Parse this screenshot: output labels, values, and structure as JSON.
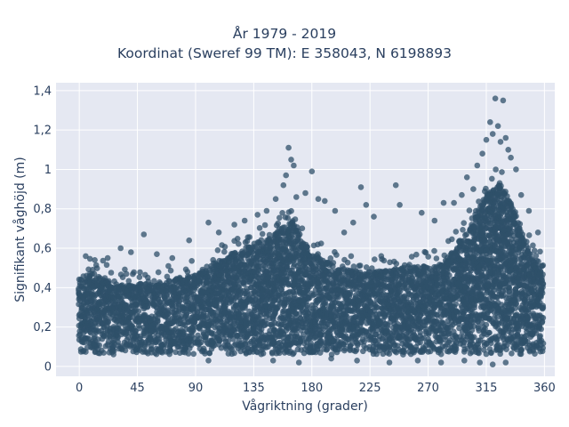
{
  "title": {
    "line1": "År 1979 - 2019",
    "line2": "Koordinat (Sweref 99 TM): E 358043, N 6198893"
  },
  "colors": {
    "plot_bg": "#e5e8f2",
    "grid": "#ffffff",
    "marker": "#2f5069"
  },
  "chart_data": {
    "type": "scatter",
    "xlabel": "Vågriktning (grader)",
    "ylabel": "Signifikant våghöjd (m)",
    "xlim": [
      -18,
      368
    ],
    "ylim": [
      -0.05,
      1.44
    ],
    "xticks": [
      0,
      45,
      90,
      135,
      180,
      225,
      270,
      315,
      360
    ],
    "xtick_labels": [
      "0",
      "45",
      "90",
      "135",
      "180",
      "225",
      "270",
      "315",
      "360"
    ],
    "yticks": [
      0,
      0.2,
      0.4,
      0.6,
      0.8,
      1,
      1.2,
      1.4
    ],
    "ytick_labels": [
      "0",
      "0,2",
      "0,4",
      "0,6",
      "0,8",
      "1",
      "1,2",
      "1,4"
    ],
    "grid": true,
    "legend": "none",
    "dense_envelope": [
      {
        "x": 0,
        "ymin": 0.07,
        "ymax": 0.45
      },
      {
        "x": 10,
        "ymin": 0.06,
        "ymax": 0.48
      },
      {
        "x": 30,
        "ymin": 0.06,
        "ymax": 0.42
      },
      {
        "x": 60,
        "ymin": 0.06,
        "ymax": 0.42
      },
      {
        "x": 90,
        "ymin": 0.06,
        "ymax": 0.47
      },
      {
        "x": 110,
        "ymin": 0.06,
        "ymax": 0.55
      },
      {
        "x": 135,
        "ymin": 0.06,
        "ymax": 0.62
      },
      {
        "x": 155,
        "ymin": 0.06,
        "ymax": 0.7
      },
      {
        "x": 165,
        "ymin": 0.06,
        "ymax": 0.74
      },
      {
        "x": 180,
        "ymin": 0.06,
        "ymax": 0.58
      },
      {
        "x": 200,
        "ymin": 0.06,
        "ymax": 0.5
      },
      {
        "x": 225,
        "ymin": 0.06,
        "ymax": 0.48
      },
      {
        "x": 250,
        "ymin": 0.06,
        "ymax": 0.5
      },
      {
        "x": 280,
        "ymin": 0.06,
        "ymax": 0.52
      },
      {
        "x": 300,
        "ymin": 0.06,
        "ymax": 0.68
      },
      {
        "x": 315,
        "ymin": 0.06,
        "ymax": 0.88
      },
      {
        "x": 325,
        "ymin": 0.06,
        "ymax": 0.95
      },
      {
        "x": 335,
        "ymin": 0.06,
        "ymax": 0.82
      },
      {
        "x": 345,
        "ymin": 0.06,
        "ymax": 0.62
      },
      {
        "x": 360,
        "ymin": 0.06,
        "ymax": 0.5
      }
    ],
    "outliers": [
      [
        5,
        0.56
      ],
      [
        12,
        0.54
      ],
      [
        22,
        0.55
      ],
      [
        32,
        0.6
      ],
      [
        40,
        0.58
      ],
      [
        50,
        0.67
      ],
      [
        60,
        0.57
      ],
      [
        72,
        0.55
      ],
      [
        85,
        0.64
      ],
      [
        100,
        0.73
      ],
      [
        108,
        0.68
      ],
      [
        120,
        0.72
      ],
      [
        128,
        0.74
      ],
      [
        138,
        0.77
      ],
      [
        145,
        0.79
      ],
      [
        152,
        0.85
      ],
      [
        158,
        0.92
      ],
      [
        160,
        0.97
      ],
      [
        162,
        1.11
      ],
      [
        164,
        1.05
      ],
      [
        166,
        1.02
      ],
      [
        168,
        0.86
      ],
      [
        175,
        0.88
      ],
      [
        180,
        0.99
      ],
      [
        185,
        0.85
      ],
      [
        190,
        0.84
      ],
      [
        198,
        0.79
      ],
      [
        205,
        0.68
      ],
      [
        212,
        0.73
      ],
      [
        218,
        0.91
      ],
      [
        222,
        0.82
      ],
      [
        228,
        0.76
      ],
      [
        245,
        0.92
      ],
      [
        248,
        0.82
      ],
      [
        265,
        0.78
      ],
      [
        275,
        0.74
      ],
      [
        282,
        0.83
      ],
      [
        290,
        0.83
      ],
      [
        296,
        0.87
      ],
      [
        300,
        0.96
      ],
      [
        305,
        0.9
      ],
      [
        308,
        1.02
      ],
      [
        312,
        1.08
      ],
      [
        315,
        1.15
      ],
      [
        318,
        1.24
      ],
      [
        320,
        1.18
      ],
      [
        322,
        1.36
      ],
      [
        324,
        1.22
      ],
      [
        326,
        1.14
      ],
      [
        328,
        1.35
      ],
      [
        330,
        1.16
      ],
      [
        332,
        1.1
      ],
      [
        334,
        1.06
      ],
      [
        338,
        1.0
      ],
      [
        342,
        0.87
      ],
      [
        348,
        0.79
      ],
      [
        355,
        0.68
      ]
    ],
    "lower_scatter": [
      [
        100,
        0.03
      ],
      [
        150,
        0.03
      ],
      [
        170,
        0.02
      ],
      [
        195,
        0.04
      ],
      [
        215,
        0.03
      ],
      [
        240,
        0.02
      ],
      [
        262,
        0.03
      ],
      [
        280,
        0.02
      ],
      [
        298,
        0.03
      ],
      [
        310,
        0.02
      ],
      [
        320,
        0.01
      ],
      [
        330,
        0.02
      ]
    ]
  }
}
